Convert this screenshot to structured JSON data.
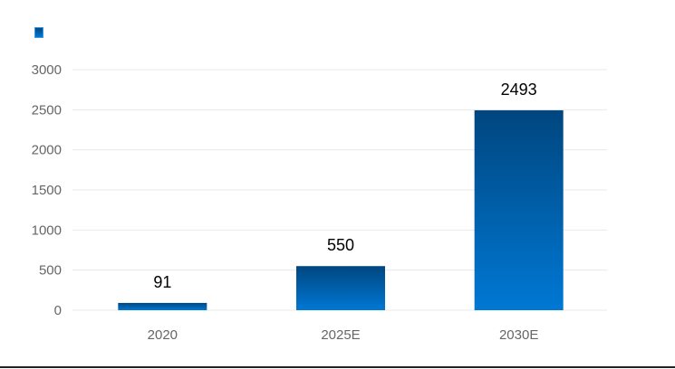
{
  "chart_data": {
    "type": "bar",
    "title": "",
    "categories": [
      "2020",
      "2025E",
      "2030E"
    ],
    "series": [
      {
        "values": [
          91,
          550,
          2493
        ]
      }
    ],
    "data_labels": [
      "91",
      "550",
      "2493"
    ],
    "yticks": [
      "0",
      "500",
      "1000",
      "1500",
      "2000",
      "2500",
      "3000"
    ],
    "ylim": [
      0,
      3000
    ],
    "grid": true,
    "legend": "top-left",
    "colors": {
      "bar_top": "#00467f",
      "bar_bottom": "#0078d4",
      "grid": "#e8e8e8"
    }
  }
}
